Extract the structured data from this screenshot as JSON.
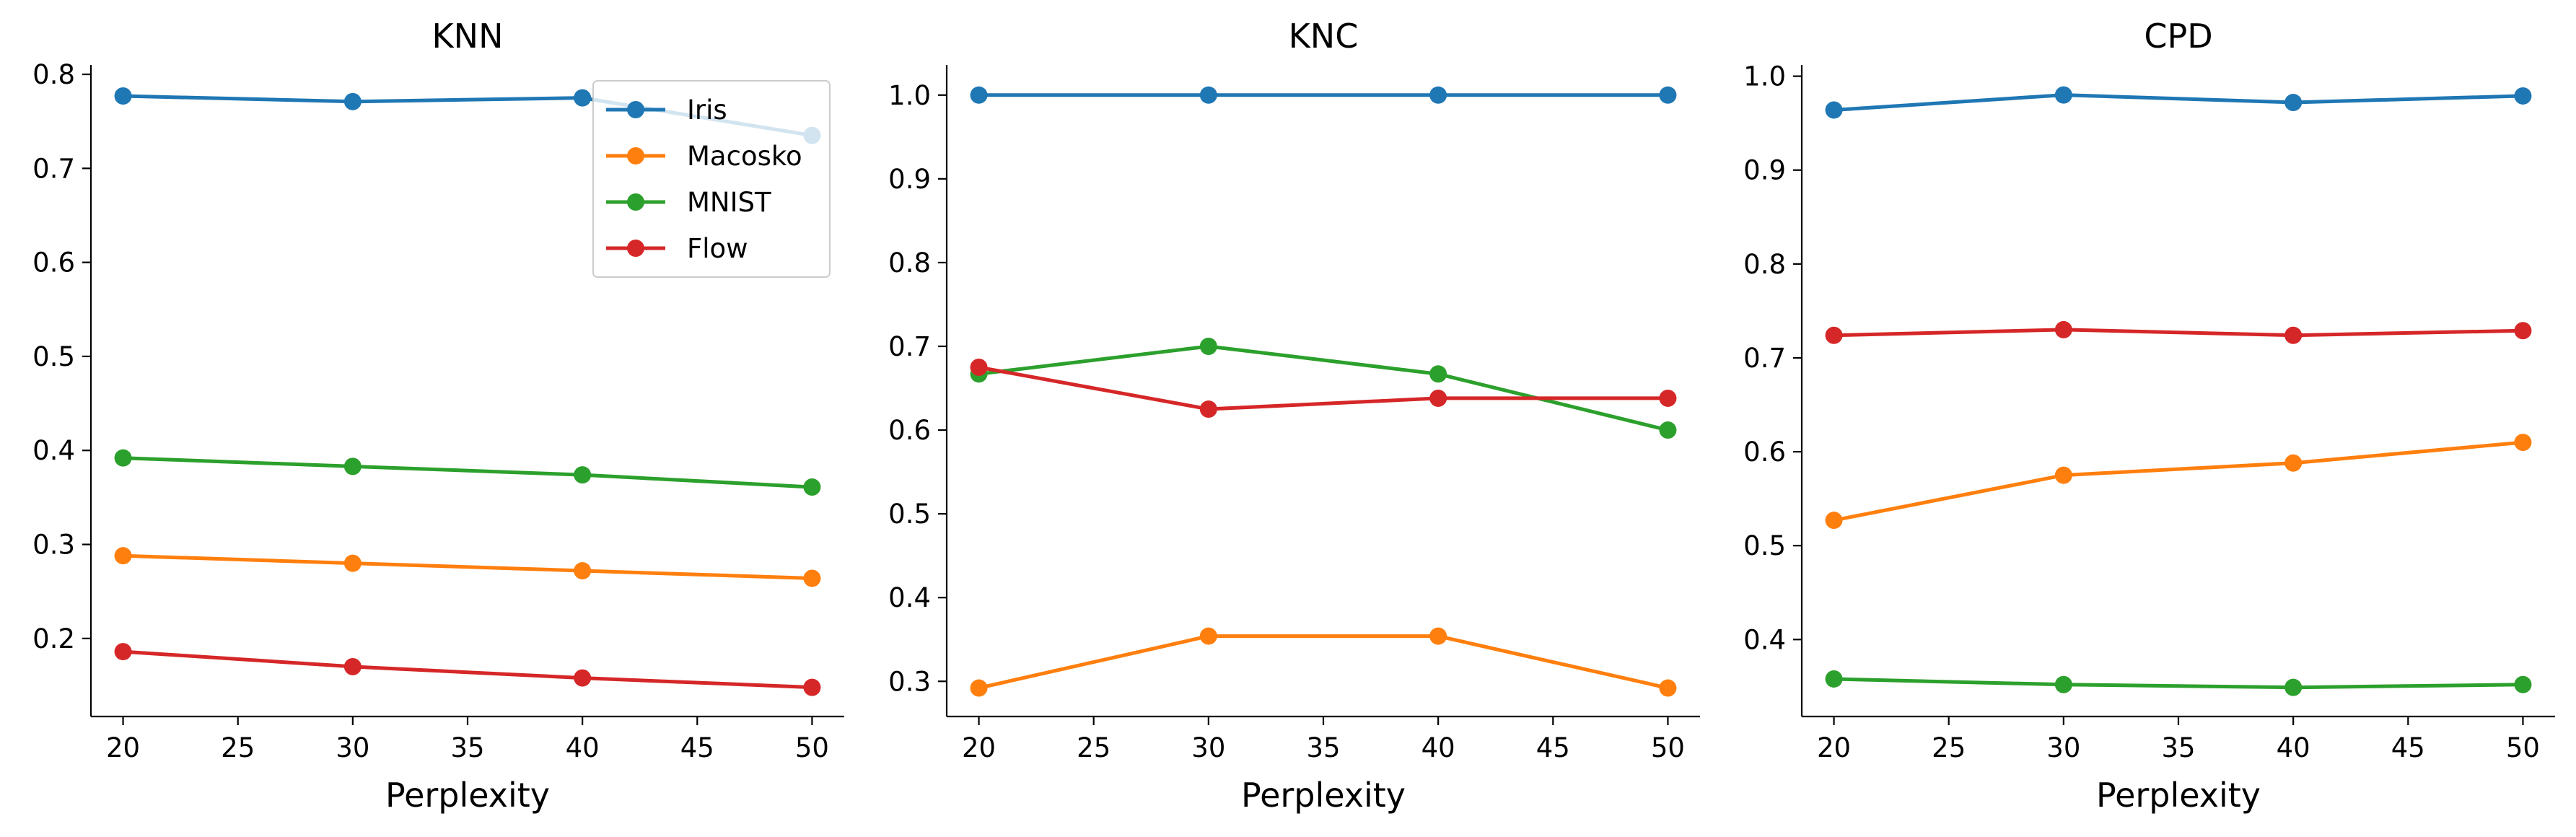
{
  "chart_data": [
    {
      "type": "line",
      "title": "KNN",
      "xlabel": "Perplexity",
      "ylabel": "",
      "x": [
        20,
        30,
        40,
        50
      ],
      "xticks": [
        20,
        25,
        30,
        35,
        40,
        45,
        50
      ],
      "xlim": [
        18.6,
        51.4
      ],
      "yticks": [
        0.2,
        0.3,
        0.4,
        0.5,
        0.6,
        0.7,
        0.8
      ],
      "ylim": [
        0.117,
        0.81
      ],
      "ytick_decimals": 1,
      "grid": false,
      "legend": "top-right",
      "series": [
        {
          "name": "Iris",
          "color": "#1f77b4",
          "values": [
            0.777,
            0.771,
            0.775,
            0.735
          ]
        },
        {
          "name": "Macosko",
          "color": "#ff7f0e",
          "values": [
            0.288,
            0.28,
            0.272,
            0.264
          ]
        },
        {
          "name": "MNIST",
          "color": "#2ca02c",
          "values": [
            0.392,
            0.383,
            0.374,
            0.361
          ]
        },
        {
          "name": "Flow",
          "color": "#d62728",
          "values": [
            0.186,
            0.17,
            0.158,
            0.148
          ]
        }
      ]
    },
    {
      "type": "line",
      "title": "KNC",
      "xlabel": "Perplexity",
      "ylabel": "",
      "x": [
        20,
        30,
        40,
        50
      ],
      "xticks": [
        20,
        25,
        30,
        35,
        40,
        45,
        50
      ],
      "xlim": [
        18.6,
        51.4
      ],
      "yticks": [
        0.3,
        0.4,
        0.5,
        0.6,
        0.7,
        0.8,
        0.9,
        1.0
      ],
      "ylim": [
        0.258,
        1.036
      ],
      "ytick_decimals": 1,
      "grid": false,
      "series": [
        {
          "name": "Iris",
          "color": "#1f77b4",
          "values": [
            1.0,
            1.0,
            1.0,
            1.0
          ]
        },
        {
          "name": "Macosko",
          "color": "#ff7f0e",
          "values": [
            0.292,
            0.354,
            0.354,
            0.292
          ]
        },
        {
          "name": "MNIST",
          "color": "#2ca02c",
          "values": [
            0.667,
            0.7,
            0.667,
            0.6
          ]
        },
        {
          "name": "Flow",
          "color": "#d62728",
          "values": [
            0.675,
            0.625,
            0.638,
            0.638
          ]
        }
      ]
    },
    {
      "type": "line",
      "title": "CPD",
      "xlabel": "Perplexity",
      "ylabel": "",
      "x": [
        20,
        30,
        40,
        50
      ],
      "xticks": [
        20,
        25,
        30,
        35,
        40,
        45,
        50
      ],
      "xlim": [
        18.6,
        51.4
      ],
      "yticks": [
        0.4,
        0.5,
        0.6,
        0.7,
        0.8,
        0.9,
        1.0
      ],
      "ylim": [
        0.318,
        1.012
      ],
      "ytick_decimals": 1,
      "grid": false,
      "series": [
        {
          "name": "Iris",
          "color": "#1f77b4",
          "values": [
            0.964,
            0.98,
            0.972,
            0.979
          ]
        },
        {
          "name": "Macosko",
          "color": "#ff7f0e",
          "values": [
            0.527,
            0.575,
            0.588,
            0.61
          ]
        },
        {
          "name": "MNIST",
          "color": "#2ca02c",
          "values": [
            0.358,
            0.352,
            0.349,
            0.352
          ]
        },
        {
          "name": "Flow",
          "color": "#d62728",
          "values": [
            0.724,
            0.73,
            0.724,
            0.729
          ]
        }
      ]
    }
  ]
}
